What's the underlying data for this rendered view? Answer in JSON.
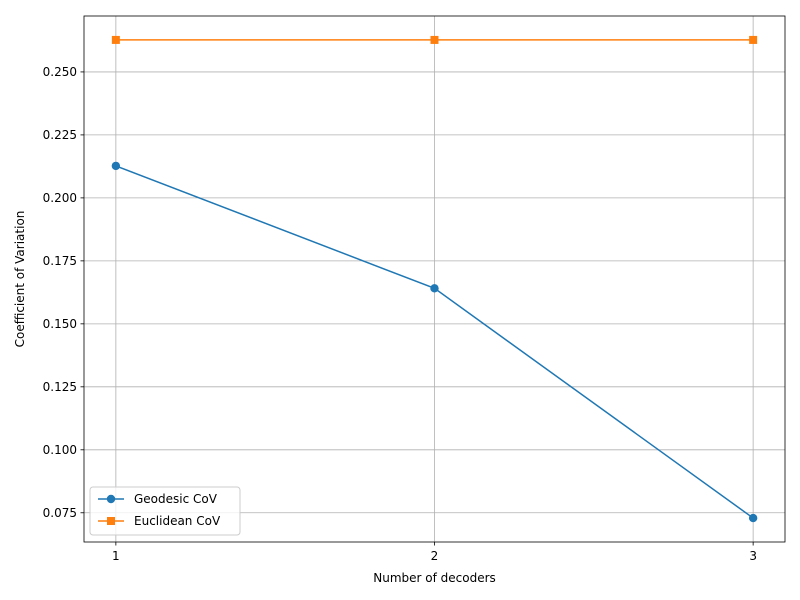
{
  "chart_data": {
    "type": "line",
    "x": [
      1,
      2,
      3
    ],
    "series": [
      {
        "name": "Geodesic CoV",
        "values": [
          0.2127,
          0.1641,
          0.0729
        ],
        "color": "#1f77b4",
        "marker": "circle"
      },
      {
        "name": "Euclidean CoV",
        "values": [
          0.2627,
          0.2627,
          0.2627
        ],
        "color": "#ff7f0e",
        "marker": "square"
      }
    ],
    "xlabel": "Number of decoders",
    "ylabel": "Coefficient of Variation",
    "xlim": [
      0.9,
      3.1
    ],
    "ylim": [
      0.0634,
      0.2722
    ],
    "xticks": [
      1,
      2,
      3
    ],
    "xtick_labels": [
      "1",
      "2",
      "3"
    ],
    "yticks": [
      0.075,
      0.1,
      0.125,
      0.15,
      0.175,
      0.2,
      0.225,
      0.25
    ],
    "ytick_labels": [
      "0.075",
      "0.100",
      "0.125",
      "0.150",
      "0.175",
      "0.200",
      "0.225",
      "0.250"
    ],
    "grid": true,
    "legend_position": "lower-left"
  }
}
